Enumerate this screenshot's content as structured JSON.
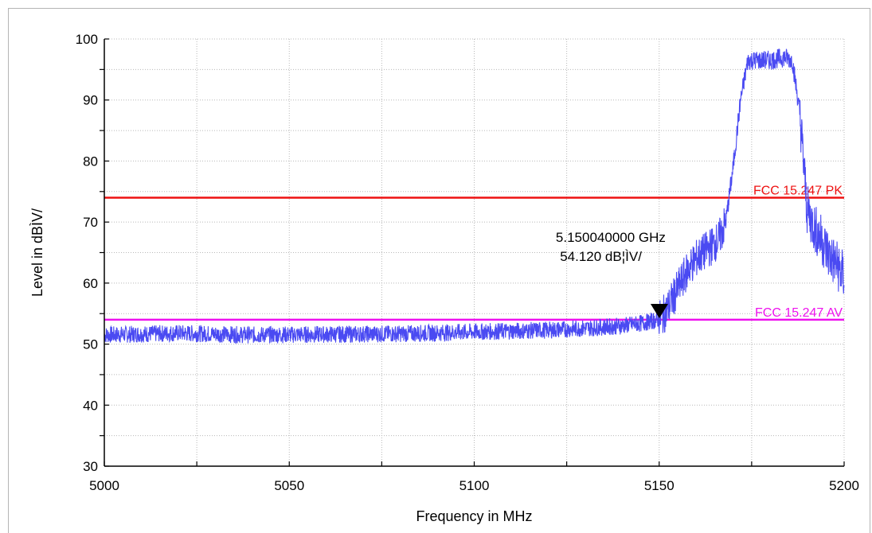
{
  "chart_data": {
    "type": "line",
    "xlabel": "Frequency in MHz",
    "ylabel": "Level in dBÌV/",
    "xlim": [
      5000,
      5200
    ],
    "ylim": [
      30,
      100
    ],
    "x_ticks": [
      5000,
      5050,
      5100,
      5150,
      5200
    ],
    "y_ticks": [
      30,
      40,
      50,
      60,
      70,
      80,
      90,
      100
    ],
    "grid": true,
    "series": [
      {
        "color": "#4a4af2",
        "x": [
          5000,
          5020,
          5040,
          5060,
          5080,
          5100,
          5120,
          5130,
          5140,
          5145,
          5150,
          5152,
          5155,
          5158,
          5160,
          5163,
          5166,
          5168,
          5170,
          5172,
          5174,
          5176,
          5180,
          5184,
          5186,
          5188,
          5190,
          5192,
          5194,
          5196,
          5198,
          5200
        ],
        "y": [
          51.5,
          51.8,
          51.5,
          51.6,
          51.7,
          52.0,
          52.3,
          52.6,
          53.0,
          53.4,
          54.0,
          55.5,
          59.0,
          62.5,
          64.0,
          65.5,
          67.0,
          70.0,
          79.0,
          90.0,
          96.5,
          96.5,
          96.5,
          97.0,
          96.5,
          88.0,
          72.0,
          69.0,
          67.0,
          64.5,
          63.0,
          61.0
        ]
      }
    ],
    "limit_lines": [
      {
        "name": "FCC 15.247 PK",
        "y": 74,
        "color": "#ee1111"
      },
      {
        "name": "FCC 15.247 AV",
        "y": 54,
        "color": "#ee11ee"
      }
    ],
    "marker": {
      "x": 5150.04,
      "y": 54.12,
      "label_freq": "5.150040000 GHz",
      "label_level": "54.120 dB¦ÌV/"
    }
  }
}
